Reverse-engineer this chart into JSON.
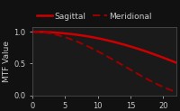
{
  "background_color": "#111111",
  "axes_background_color": "#1a1a1a",
  "ylabel": "MTF Value",
  "xlim": [
    0,
    22
  ],
  "ylim": [
    0,
    1.08
  ],
  "xticks": [
    0,
    5,
    10,
    15,
    20
  ],
  "yticks": [
    0,
    0.5,
    1
  ],
  "sagittal_color": "#cc0000",
  "meridional_color": "#990000",
  "sagittal_label": "Sagittal",
  "meridional_label": "Meridional",
  "sagittal_linewidth": 1.8,
  "meridional_linewidth": 1.5,
  "text_color": "#cccccc",
  "legend_fontsize": 6.5,
  "axis_fontsize": 6.5,
  "tick_fontsize": 6,
  "sagittal_x": [
    0,
    2,
    4,
    6,
    8,
    10,
    12,
    14,
    16,
    18,
    20,
    22
  ],
  "sagittal_y": [
    1.0,
    0.995,
    0.983,
    0.963,
    0.935,
    0.898,
    0.852,
    0.798,
    0.737,
    0.668,
    0.593,
    0.513
  ],
  "meridional_x": [
    0,
    2,
    4,
    6,
    8,
    10,
    12,
    14,
    16,
    18,
    20,
    22
  ],
  "meridional_y": [
    1.0,
    0.985,
    0.944,
    0.878,
    0.793,
    0.692,
    0.58,
    0.462,
    0.343,
    0.231,
    0.132,
    0.055
  ]
}
